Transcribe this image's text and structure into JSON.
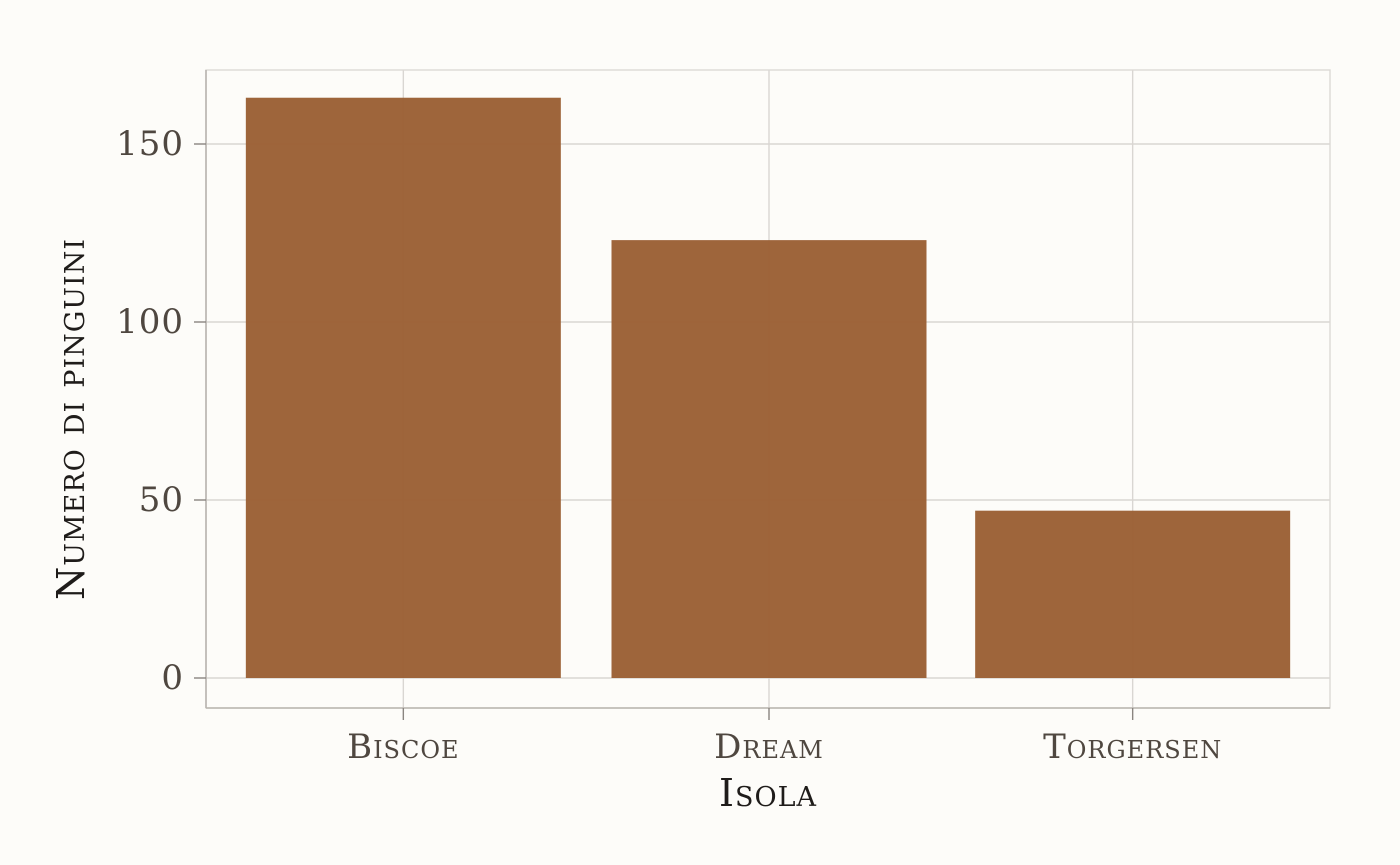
{
  "colors": {
    "background": "#fdfcf9",
    "bar_fill": "#9b6035"
  },
  "chart_data": {
    "type": "bar",
    "categories": [
      "Biscoe",
      "Dream",
      "Torgersen"
    ],
    "values": [
      163,
      123,
      47
    ],
    "title": "",
    "xlabel": "Isola",
    "ylabel": "Numero di pinguini",
    "ylim": [
      0,
      170
    ],
    "yticks": [
      0,
      50,
      100,
      150
    ],
    "ytick_labels": [
      "0",
      "50",
      "100",
      "150"
    ],
    "grid": true,
    "legend": "none"
  }
}
